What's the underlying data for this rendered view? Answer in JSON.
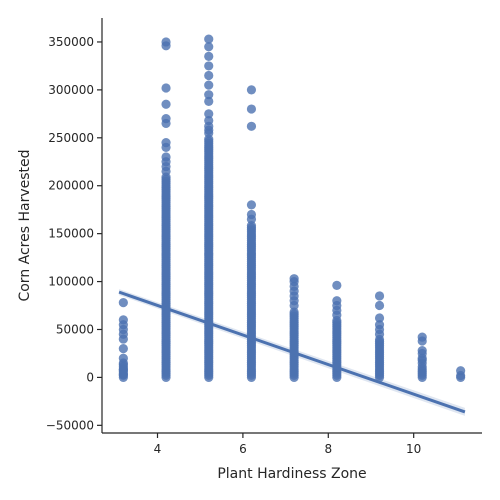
{
  "chart_data": {
    "type": "scatter",
    "xlabel": "Plant Hardiness Zone",
    "ylabel": "Corn Acres Harvested",
    "xlim": [
      2.7,
      11.6
    ],
    "ylim": [
      -58000,
      375000
    ],
    "x_ticks": [
      4,
      6,
      8,
      10
    ],
    "y_ticks": [
      -50000,
      0,
      50000,
      100000,
      150000,
      200000,
      250000,
      300000,
      350000
    ],
    "x_tick_labels": [
      "4",
      "6",
      "8",
      "10"
    ],
    "y_tick_labels": [
      "−50000",
      "0",
      "50000",
      "100000",
      "150000",
      "200000",
      "250000",
      "300000",
      "350000"
    ],
    "grid": false,
    "point_color": "#4c72b0",
    "line_color": "#4c72b0",
    "regression_line": {
      "x": [
        3.1,
        11.2
      ],
      "y": [
        89000,
        -36000
      ]
    },
    "columns": [
      {
        "x": 3.2,
        "dense_max": 15000,
        "outliers": [
          3000,
          8000,
          15000,
          20000,
          30000,
          40000,
          45000,
          50000,
          55000,
          60000,
          78000
        ]
      },
      {
        "x": 4.2,
        "dense_max": 210000,
        "outliers": [
          215000,
          220000,
          225000,
          230000,
          240000,
          245000,
          265000,
          270000,
          285000,
          302000,
          346000,
          350000
        ]
      },
      {
        "x": 5.2,
        "dense_max": 250000,
        "outliers": [
          255000,
          258000,
          262000,
          268000,
          275000,
          288000,
          295000,
          305000,
          315000,
          325000,
          335000,
          345000,
          353000
        ]
      },
      {
        "x": 6.2,
        "dense_max": 160000,
        "outliers": [
          165000,
          170000,
          180000,
          262000,
          280000,
          300000
        ]
      },
      {
        "x": 7.2,
        "dense_max": 70000,
        "outliers": [
          75000,
          80000,
          85000,
          90000,
          95000,
          100000,
          103000
        ]
      },
      {
        "x": 8.2,
        "dense_max": 60000,
        "outliers": [
          65000,
          70000,
          75000,
          80000,
          96000
        ]
      },
      {
        "x": 9.2,
        "dense_max": 40000,
        "outliers": [
          45000,
          50000,
          55000,
          62000,
          75000,
          85000
        ]
      },
      {
        "x": 10.2,
        "dense_max": 12000,
        "outliers": [
          15000,
          18000,
          20000,
          25000,
          28000,
          38000,
          42000
        ]
      },
      {
        "x": 11.1,
        "dense_max": 0,
        "outliers": [
          2000,
          7000
        ]
      }
    ]
  }
}
